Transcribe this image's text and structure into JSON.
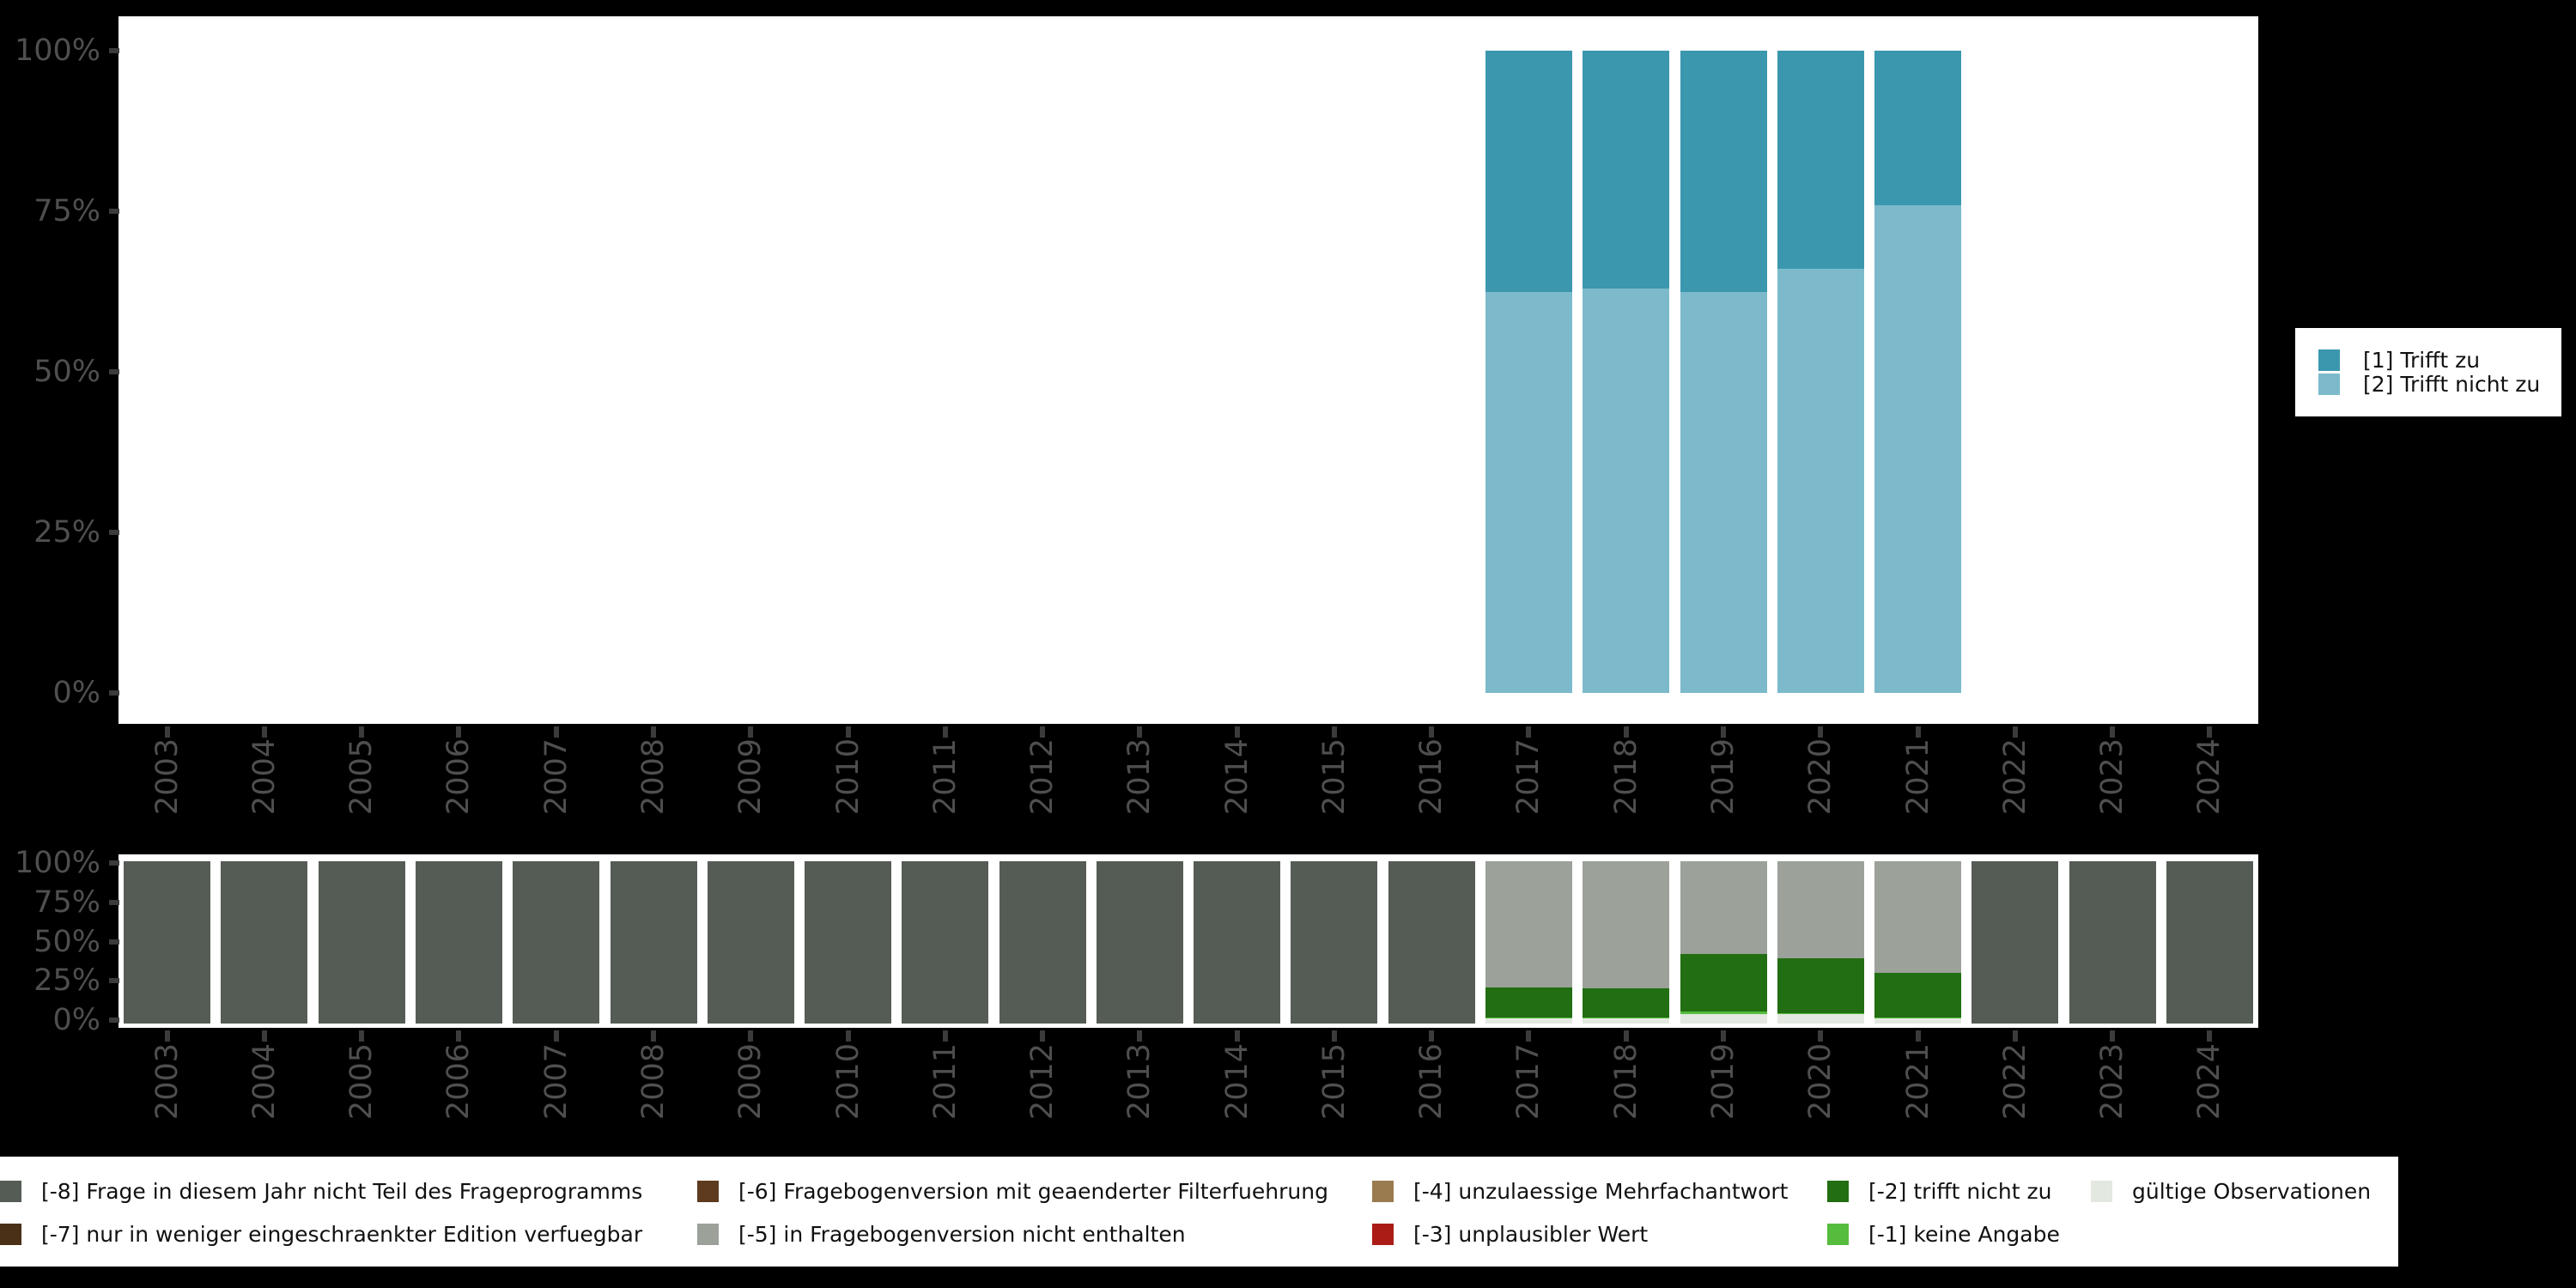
{
  "colors": {
    "page_bg": "#000000",
    "panel_bg": "#FFFFFF",
    "axis_text": "#4F4F4F",
    "tick": "#3B3B3B"
  },
  "chart_data": [
    {
      "type": "bar",
      "stacked": true,
      "orientation": "vertical",
      "title": "",
      "xlabel": "",
      "ylabel": "",
      "ylim": [
        0,
        100
      ],
      "grid": false,
      "categories": [
        "2003",
        "2004",
        "2005",
        "2006",
        "2007",
        "2008",
        "2009",
        "2010",
        "2011",
        "2012",
        "2013",
        "2014",
        "2015",
        "2016",
        "2017",
        "2018",
        "2019",
        "2020",
        "2021",
        "2022",
        "2023",
        "2024"
      ],
      "yticks": [
        "100%",
        "75%",
        "50%",
        "25%",
        "0%"
      ],
      "legend_position": "right",
      "legend": [
        {
          "label": "[1] Trifft zu",
          "color": "#3A97AE"
        },
        {
          "label": "[2] Trifft nicht zu",
          "color": "#7CBACB"
        }
      ],
      "series": [
        {
          "name": "[1] Trifft zu",
          "color": "#3A97AE",
          "values": [
            null,
            null,
            null,
            null,
            null,
            null,
            null,
            null,
            null,
            null,
            null,
            null,
            null,
            null,
            37.5,
            37,
            37.5,
            34,
            24,
            null,
            null,
            null
          ]
        },
        {
          "name": "[2] Trifft nicht zu",
          "color": "#7CBACB",
          "values": [
            null,
            null,
            null,
            null,
            null,
            null,
            null,
            null,
            null,
            null,
            null,
            null,
            null,
            null,
            62.5,
            63,
            62.5,
            66,
            76,
            null,
            null,
            null
          ]
        }
      ]
    },
    {
      "type": "bar",
      "stacked": true,
      "orientation": "vertical",
      "title": "",
      "xlabel": "",
      "ylabel": "",
      "ylim": [
        0,
        100
      ],
      "grid": false,
      "categories": [
        "2003",
        "2004",
        "2005",
        "2006",
        "2007",
        "2008",
        "2009",
        "2010",
        "2011",
        "2012",
        "2013",
        "2014",
        "2015",
        "2016",
        "2017",
        "2018",
        "2019",
        "2020",
        "2021",
        "2022",
        "2023",
        "2024"
      ],
      "yticks": [
        "100%",
        "75%",
        "50%",
        "25%",
        "0%"
      ],
      "legend_position": "bottom",
      "legend": [
        {
          "label": "[-8] Frage in diesem Jahr nicht Teil des Frageprogramms",
          "color": "#555C55"
        },
        {
          "label": "[-7] nur in weniger eingeschraenkter Edition verfuegbar",
          "color": "#4A3017"
        },
        {
          "label": "[-6] Fragebogenversion mit geaenderter Filterfuehrung",
          "color": "#5E3B1E"
        },
        {
          "label": "[-5] in Fragebogenversion nicht enthalten",
          "color": "#9CA19A"
        },
        {
          "label": "[-4] unzulaessige Mehrfachantwort",
          "color": "#9A7B4F"
        },
        {
          "label": "[-3] unplausibler Wert",
          "color": "#AA1C15"
        },
        {
          "label": "[-2] trifft nicht zu",
          "color": "#226E12"
        },
        {
          "label": "[-1] keine Angabe",
          "color": "#55BC3D"
        },
        {
          "label": "gültige Observationen",
          "color": "#E3E8E1"
        }
      ],
      "series": [
        {
          "name": "gültige Observationen",
          "color": "#E3E8E1",
          "values": [
            null,
            null,
            null,
            null,
            null,
            null,
            null,
            null,
            null,
            null,
            null,
            null,
            null,
            null,
            3,
            3,
            6,
            6,
            3,
            null,
            null,
            null
          ]
        },
        {
          "name": "[-1] keine Angabe",
          "color": "#55BC3D",
          "values": [
            null,
            null,
            null,
            null,
            null,
            null,
            null,
            null,
            null,
            null,
            null,
            null,
            null,
            null,
            1,
            0.5,
            1.5,
            0.5,
            0.5,
            null,
            null,
            null
          ]
        },
        {
          "name": "[-2] trifft nicht zu",
          "color": "#226E12",
          "values": [
            null,
            null,
            null,
            null,
            null,
            null,
            null,
            null,
            null,
            null,
            null,
            null,
            null,
            null,
            18.5,
            18,
            35.5,
            33.5,
            27.5,
            null,
            null,
            null
          ]
        },
        {
          "name": "[-5] in Fragebogenversion nicht enthalten",
          "color": "#9CA19A",
          "values": [
            null,
            null,
            null,
            null,
            null,
            null,
            null,
            null,
            null,
            null,
            null,
            null,
            null,
            null,
            77.5,
            78.5,
            57,
            60,
            69,
            null,
            null,
            null
          ]
        },
        {
          "name": "[-8] Frage in diesem Jahr nicht Teil des Frageprogramms",
          "color": "#555C55",
          "values": [
            100,
            100,
            100,
            100,
            100,
            100,
            100,
            100,
            100,
            100,
            100,
            100,
            100,
            100,
            null,
            null,
            null,
            null,
            null,
            100,
            100,
            100
          ]
        }
      ]
    }
  ]
}
